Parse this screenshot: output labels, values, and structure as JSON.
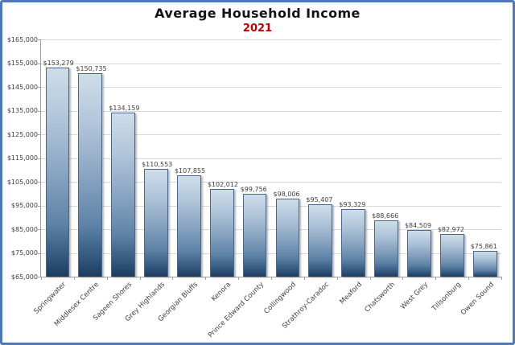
{
  "chart_data": {
    "type": "bar",
    "title": "Average Household Income",
    "subtitle": "2021",
    "categories": [
      "Springwater",
      "Middlesex Centre",
      "Sageen Shores",
      "Grey Highlands",
      "Georgian Bluffs",
      "Kenora",
      "Prince Edward County",
      "Collingwood",
      "Strathroy-Caradoc",
      "Meaford",
      "Chatsworth",
      "West Grey",
      "Tillsonburg",
      "Owen Sound"
    ],
    "values": [
      153279,
      150735,
      134159,
      110553,
      107855,
      102012,
      99756,
      98006,
      95407,
      93329,
      88666,
      84509,
      82972,
      75861
    ],
    "value_labels": [
      "$153,279",
      "$150,735",
      "$134,159",
      "$110,553",
      "$107,855",
      "$102,012",
      "$99,756",
      "$98,006",
      "$95,407",
      "$93,329",
      "$88,666",
      "$84,509",
      "$82,972",
      "$75,861"
    ],
    "xlabel": "",
    "ylabel": "",
    "ylim": [
      65000,
      165000
    ],
    "ytick_step": 10000,
    "ytick_labels_top_to_bottom": [
      "$165,000",
      "$155,000",
      "$145,000",
      "$135,000",
      "$125,000",
      "$115,000",
      "$105,000",
      "$95,000",
      "$85,000",
      "$75,000",
      "$65,000"
    ],
    "grid": true,
    "legend": false
  },
  "colors": {
    "subtitle": "#c00000",
    "title_text": "#141414",
    "axis": "#9e9e9e",
    "gridline": "#d8d8d8",
    "label_text": "#3d3d3d",
    "frame_border": "#4d79b6",
    "bar_gradient_top": "#cedde9",
    "bar_gradient_bottom": "#1d3c5f",
    "bar_border": "#4c6785"
  }
}
